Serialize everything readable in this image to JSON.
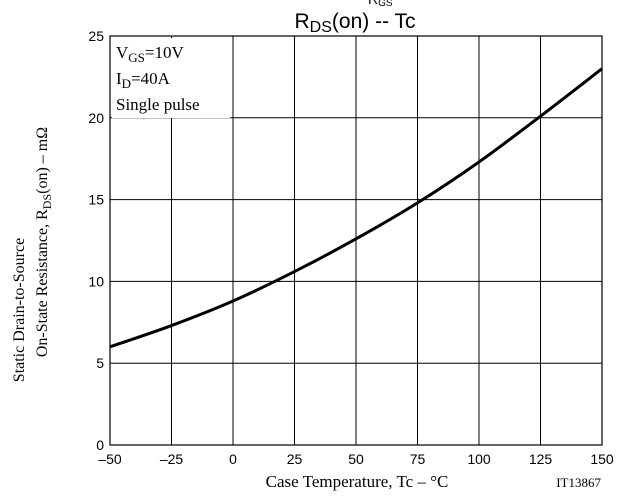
{
  "chart_data": {
    "type": "line",
    "title_main": "R",
    "title_sub": "DS",
    "title_rest": "(on)  --  Tc",
    "top_clip": "R",
    "top_clip_sub": "GS",
    "xlabel": "Case Temperature, Tc  –  °C",
    "ylabel_line1": "Static Drain-to-Source",
    "ylabel_line2_pre": "On-State Resistance, R",
    "ylabel_line2_sub": "DS",
    "ylabel_line2_post": "(on)  –  mΩ",
    "xlim": [
      -50,
      150
    ],
    "ylim": [
      0,
      25
    ],
    "x_ticks": [
      "–50",
      "–25",
      "0",
      "25",
      "50",
      "75",
      "100",
      "125",
      "150"
    ],
    "x_tick_values": [
      -50,
      -25,
      0,
      25,
      50,
      75,
      100,
      125,
      150
    ],
    "y_ticks": [
      "0",
      "5",
      "10",
      "15",
      "20",
      "25"
    ],
    "y_tick_values": [
      0,
      5,
      10,
      15,
      20,
      25
    ],
    "grid": true,
    "annotations": {
      "vgs_pre": "V",
      "vgs_sub": "GS",
      "vgs_post": "=10V",
      "id_pre": "I",
      "id_sub": "D",
      "id_post": "=40A",
      "pulse": "Single pulse"
    },
    "code": "IT13867",
    "series": [
      {
        "x": [
          -50,
          -25,
          0,
          25,
          50,
          75,
          100,
          125,
          150
        ],
        "values": [
          6.0,
          7.3,
          8.8,
          10.6,
          12.6,
          14.8,
          17.3,
          20.1,
          23.0
        ]
      }
    ],
    "colors": {
      "line": "#000000",
      "grid": "#000000",
      "background": "#ffffff"
    }
  }
}
